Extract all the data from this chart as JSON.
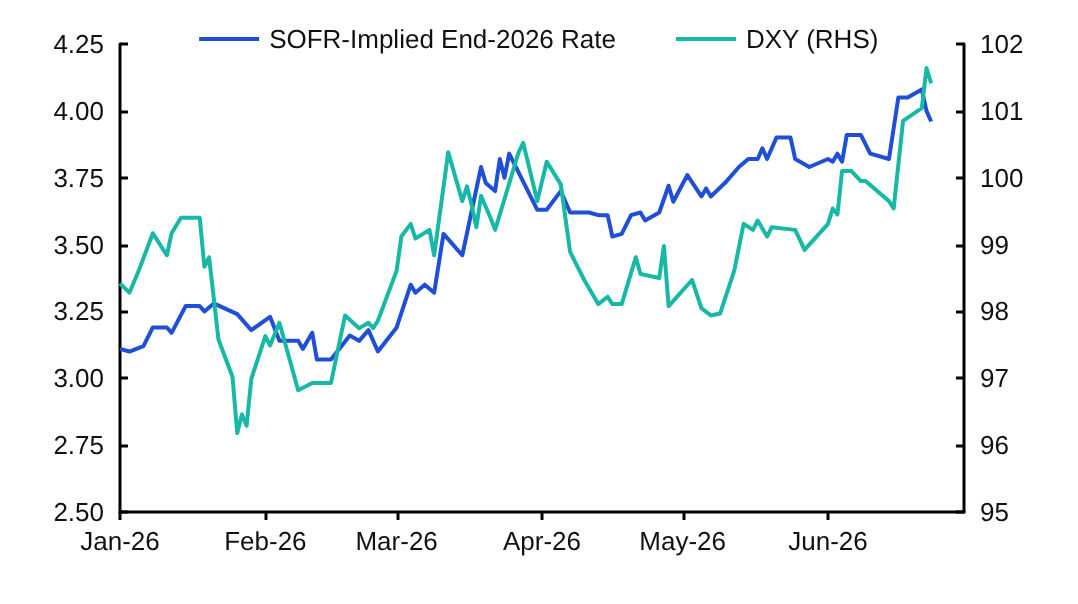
{
  "chart_data": {
    "type": "line",
    "legend": "top",
    "grid": false,
    "marker": "none",
    "line_style": "solid",
    "xlim": [
      "2026-01-01",
      "2026-06-30"
    ],
    "xticks": [
      {
        "value": "2026-01-01",
        "label": "Jan-26"
      },
      {
        "value": "2026-02-01",
        "label": "Feb-26"
      },
      {
        "value": "2026-03-01",
        "label": "Mar-26"
      },
      {
        "value": "2026-04-01",
        "label": "Apr-26"
      },
      {
        "value": "2026-05-01",
        "label": "May-26"
      },
      {
        "value": "2026-06-01",
        "label": "Jun-26"
      }
    ],
    "ylim": [
      2.5,
      4.25
    ],
    "yticks": [
      {
        "value": 2.5,
        "label": "2.50"
      },
      {
        "value": 2.75,
        "label": "2.75"
      },
      {
        "value": 3,
        "label": "3.00"
      },
      {
        "value": 3.25,
        "label": "3.25"
      },
      {
        "value": 3.5,
        "label": "3.50"
      },
      {
        "value": 3.75,
        "label": "3.75"
      },
      {
        "value": 4,
        "label": "4.00"
      },
      {
        "value": 4.25,
        "label": "4.25"
      }
    ],
    "y2lim": [
      95,
      102
    ],
    "y2ticks": [
      95,
      96,
      97,
      98,
      99,
      100,
      101,
      102
    ],
    "series": [
      {
        "name": "SOFR-Implied End-2026 Rate",
        "color": "#1f4fd6",
        "x": [
          "2026-01-01",
          "2026-01-03",
          "2026-01-06",
          "2026-01-08",
          "2026-01-11",
          "2026-01-12",
          "2026-01-15",
          "2026-01-18",
          "2026-01-19",
          "2026-01-21",
          "2026-01-26",
          "2026-01-29",
          "2026-02-02",
          "2026-02-04",
          "2026-02-08",
          "2026-02-09",
          "2026-02-11",
          "2026-02-12",
          "2026-02-15",
          "2026-02-19",
          "2026-02-21",
          "2026-02-23",
          "2026-02-25",
          "2026-03-01",
          "2026-03-04",
          "2026-03-05",
          "2026-03-07",
          "2026-03-09",
          "2026-03-11",
          "2026-03-15",
          "2026-03-19",
          "2026-03-20",
          "2026-03-22",
          "2026-03-23",
          "2026-03-24",
          "2026-03-25",
          "2026-03-27",
          "2026-03-31",
          "2026-04-02",
          "2026-04-05",
          "2026-04-07",
          "2026-04-11",
          "2026-04-13",
          "2026-04-15",
          "2026-04-16",
          "2026-04-18",
          "2026-04-20",
          "2026-04-22",
          "2026-04-23",
          "2026-04-26",
          "2026-04-28",
          "2026-04-29",
          "2026-05-02",
          "2026-05-05",
          "2026-05-06",
          "2026-05-07",
          "2026-05-10",
          "2026-05-13",
          "2026-05-15",
          "2026-05-17",
          "2026-05-18",
          "2026-05-19",
          "2026-05-21",
          "2026-05-24",
          "2026-05-25",
          "2026-05-28",
          "2026-06-01",
          "2026-06-02",
          "2026-06-03",
          "2026-06-04",
          "2026-06-05",
          "2026-06-08",
          "2026-06-10",
          "2026-06-14",
          "2026-06-16",
          "2026-06-18",
          "2026-06-21",
          "2026-06-22",
          "2026-06-23"
        ],
        "values": [
          3.11,
          3.1,
          3.12,
          3.19,
          3.19,
          3.17,
          3.27,
          3.27,
          3.25,
          3.28,
          3.24,
          3.18,
          3.23,
          3.14,
          3.14,
          3.11,
          3.17,
          3.07,
          3.07,
          3.16,
          3.14,
          3.18,
          3.1,
          3.19,
          3.35,
          3.32,
          3.35,
          3.32,
          3.54,
          3.46,
          3.79,
          3.73,
          3.7,
          3.82,
          3.75,
          3.84,
          3.77,
          3.63,
          3.63,
          3.7,
          3.62,
          3.62,
          3.61,
          3.61,
          3.53,
          3.54,
          3.61,
          3.62,
          3.59,
          3.62,
          3.72,
          3.66,
          3.76,
          3.68,
          3.71,
          3.68,
          3.73,
          3.79,
          3.82,
          3.82,
          3.86,
          3.82,
          3.9,
          3.9,
          3.82,
          3.79,
          3.82,
          3.81,
          3.84,
          3.81,
          3.91,
          3.91,
          3.84,
          3.82,
          4.05,
          4.05,
          4.08,
          4.0,
          3.96
        ]
      },
      {
        "name": "DXY (RHS)",
        "color": "#17b8a6",
        "axis": "y2",
        "x": [
          "2026-01-01",
          "2026-01-03",
          "2026-01-05",
          "2026-01-08",
          "2026-01-11",
          "2026-01-12",
          "2026-01-14",
          "2026-01-18",
          "2026-01-19",
          "2026-01-20",
          "2026-01-22",
          "2026-01-25",
          "2026-01-26",
          "2026-01-27",
          "2026-01-28",
          "2026-01-29",
          "2026-02-01",
          "2026-02-02",
          "2026-02-04",
          "2026-02-08",
          "2026-02-11",
          "2026-02-15",
          "2026-02-18",
          "2026-02-21",
          "2026-02-23",
          "2026-02-24",
          "2026-02-25",
          "2026-03-01",
          "2026-03-02",
          "2026-03-04",
          "2026-03-05",
          "2026-03-08",
          "2026-03-09",
          "2026-03-12",
          "2026-03-15",
          "2026-03-16",
          "2026-03-17",
          "2026-03-18",
          "2026-03-19",
          "2026-03-21",
          "2026-03-22",
          "2026-03-24",
          "2026-03-27",
          "2026-03-28",
          "2026-03-31",
          "2026-04-02",
          "2026-04-05",
          "2026-04-07",
          "2026-04-10",
          "2026-04-13",
          "2026-04-15",
          "2026-04-16",
          "2026-04-18",
          "2026-04-21",
          "2026-04-22",
          "2026-04-26",
          "2026-04-27",
          "2026-04-28",
          "2026-05-03",
          "2026-05-05",
          "2026-05-07",
          "2026-05-09",
          "2026-05-12",
          "2026-05-14",
          "2026-05-16",
          "2026-05-17",
          "2026-05-19",
          "2026-05-20",
          "2026-05-25",
          "2026-05-27",
          "2026-06-01",
          "2026-06-02",
          "2026-06-03",
          "2026-06-04",
          "2026-06-06",
          "2026-06-08",
          "2026-06-09",
          "2026-06-14",
          "2026-06-15",
          "2026-06-17",
          "2026-06-21",
          "2026-06-22",
          "2026-06-23"
        ],
        "values": [
          98.42,
          98.28,
          98.61,
          99.17,
          98.84,
          99.17,
          99.4,
          99.4,
          98.67,
          98.81,
          97.58,
          97.02,
          96.18,
          96.46,
          96.29,
          96.99,
          97.63,
          97.49,
          97.83,
          96.82,
          96.93,
          96.93,
          97.94,
          97.75,
          97.83,
          97.75,
          97.86,
          98.61,
          99.12,
          99.31,
          99.09,
          99.22,
          98.84,
          100.38,
          99.65,
          99.87,
          99.59,
          99.26,
          99.73,
          99.4,
          99.22,
          99.68,
          100.38,
          100.52,
          99.65,
          100.24,
          99.9,
          98.89,
          98.47,
          98.11,
          98.22,
          98.11,
          98.11,
          98.81,
          98.56,
          98.5,
          98.98,
          98.08,
          98.47,
          98.05,
          97.94,
          97.97,
          98.61,
          99.31,
          99.22,
          99.36,
          99.12,
          99.26,
          99.22,
          98.92,
          99.31,
          99.54,
          99.45,
          100.1,
          100.1,
          99.95,
          99.95,
          99.65,
          99.54,
          100.85,
          101.04,
          101.64,
          101.41
        ]
      }
    ]
  }
}
